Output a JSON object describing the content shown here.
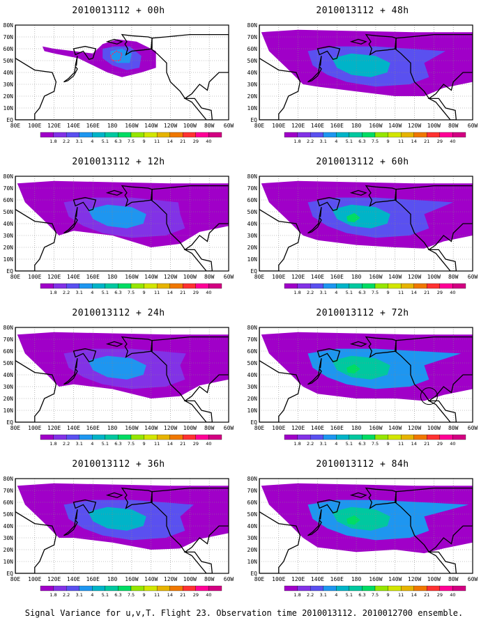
{
  "caption": "Signal Variance for u,v,T. Flight 23. Observation time 2010013112. 2010012700 ensemble.",
  "lat_labels": [
    "80N",
    "70N",
    "60N",
    "50N",
    "40N",
    "30N",
    "20N",
    "10N",
    "EQ"
  ],
  "lon_labels": [
    "80E",
    "100E",
    "120E",
    "140E",
    "160E",
    "180",
    "160W",
    "140W",
    "120W",
    "100W",
    "80W",
    "60W"
  ],
  "colorbar": {
    "labels": [
      "1.8",
      "2.2",
      "3.1",
      "4",
      "5.1",
      "6.3",
      "7.5",
      "9",
      "11",
      "14",
      "21",
      "29",
      "40"
    ],
    "colors": [
      "#a000c8",
      "#8232e6",
      "#5a50f0",
      "#1e96f0",
      "#00b4c8",
      "#00c8a0",
      "#00dc64",
      "#96e600",
      "#d2e600",
      "#e6b400",
      "#f07800",
      "#ff3232",
      "#ff0096",
      "#d20082"
    ]
  },
  "panels": [
    {
      "title": "2010013112 + 00h",
      "level": 0
    },
    {
      "title": "2010013112 + 48h",
      "level": 4
    },
    {
      "title": "2010013112 + 12h",
      "level": 1
    },
    {
      "title": "2010013112 + 60h",
      "level": 5
    },
    {
      "title": "2010013112 + 24h",
      "level": 2
    },
    {
      "title": "2010013112 + 72h",
      "level": 6
    },
    {
      "title": "2010013112 + 36h",
      "level": 3
    },
    {
      "title": "2010013112 + 84h",
      "level": 7
    }
  ]
}
